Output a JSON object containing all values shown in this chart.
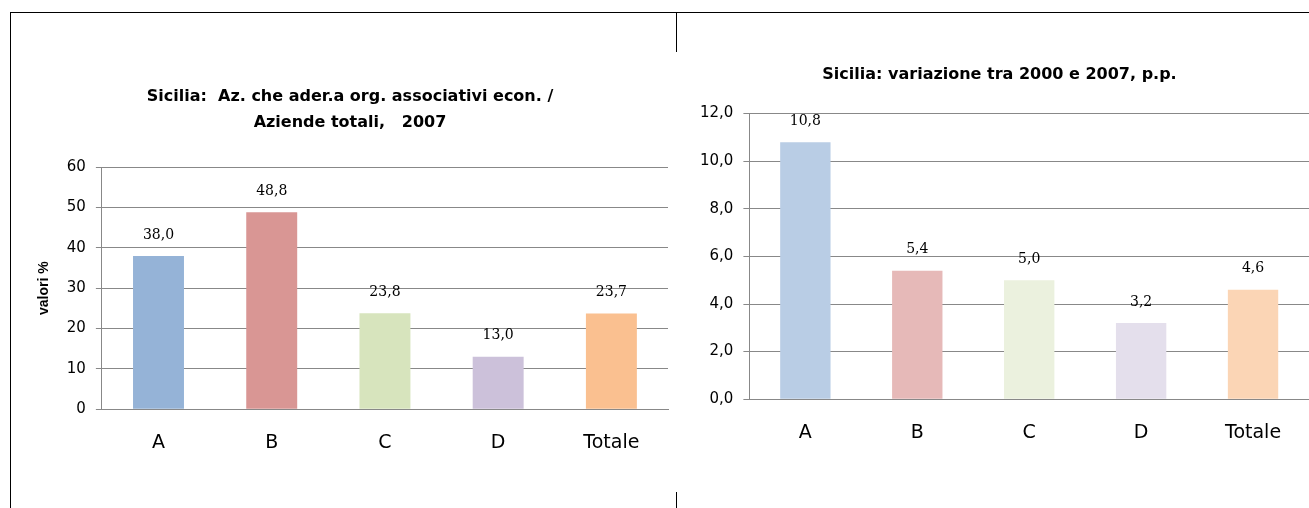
{
  "chart_data": [
    {
      "type": "bar",
      "title": "Sicilia:  Az. che ader.a org. associativi econ. /\nAziende totali,   2007",
      "ylabel": "valori %",
      "categories": [
        "A",
        "B",
        "C",
        "D",
        "Totale"
      ],
      "values": [
        38.0,
        48.8,
        23.8,
        13.0,
        23.7
      ],
      "value_labels": [
        "38,0",
        "48,8",
        "23,8",
        "13,0",
        "23,7"
      ],
      "colors": [
        "#95b3d7",
        "#d99694",
        "#d7e4bd",
        "#ccc1da",
        "#fac090"
      ],
      "ylim": [
        0,
        60
      ],
      "yticks": [
        0,
        10,
        20,
        30,
        40,
        50,
        60
      ],
      "grid": "y",
      "legend": false
    },
    {
      "type": "bar",
      "title": "Sicilia: variazione tra 2000 e 2007, p.p.",
      "categories": [
        "A",
        "B",
        "C",
        "D",
        "Totale"
      ],
      "values": [
        10.8,
        5.4,
        5.0,
        3.2,
        4.6
      ],
      "value_labels": [
        "10,8",
        "5,4",
        "5,0",
        "3,2",
        "4,6"
      ],
      "colors": [
        "#b9cde5",
        "#e6b9b8",
        "#ebf1de",
        "#e4dfec",
        "#fbd5b5"
      ],
      "ylim": [
        0,
        12
      ],
      "yticks": [
        {
          "value": 0,
          "label": "0,0"
        },
        {
          "value": 2,
          "label": "2,0"
        },
        {
          "value": 4,
          "label": "4,0"
        },
        {
          "value": 6,
          "label": "6,0"
        },
        {
          "value": 8,
          "label": "8,0"
        },
        {
          "value": 10,
          "label": "10,0"
        },
        {
          "value": 12,
          "label": "12,0"
        }
      ],
      "grid": "y",
      "legend": false
    }
  ]
}
